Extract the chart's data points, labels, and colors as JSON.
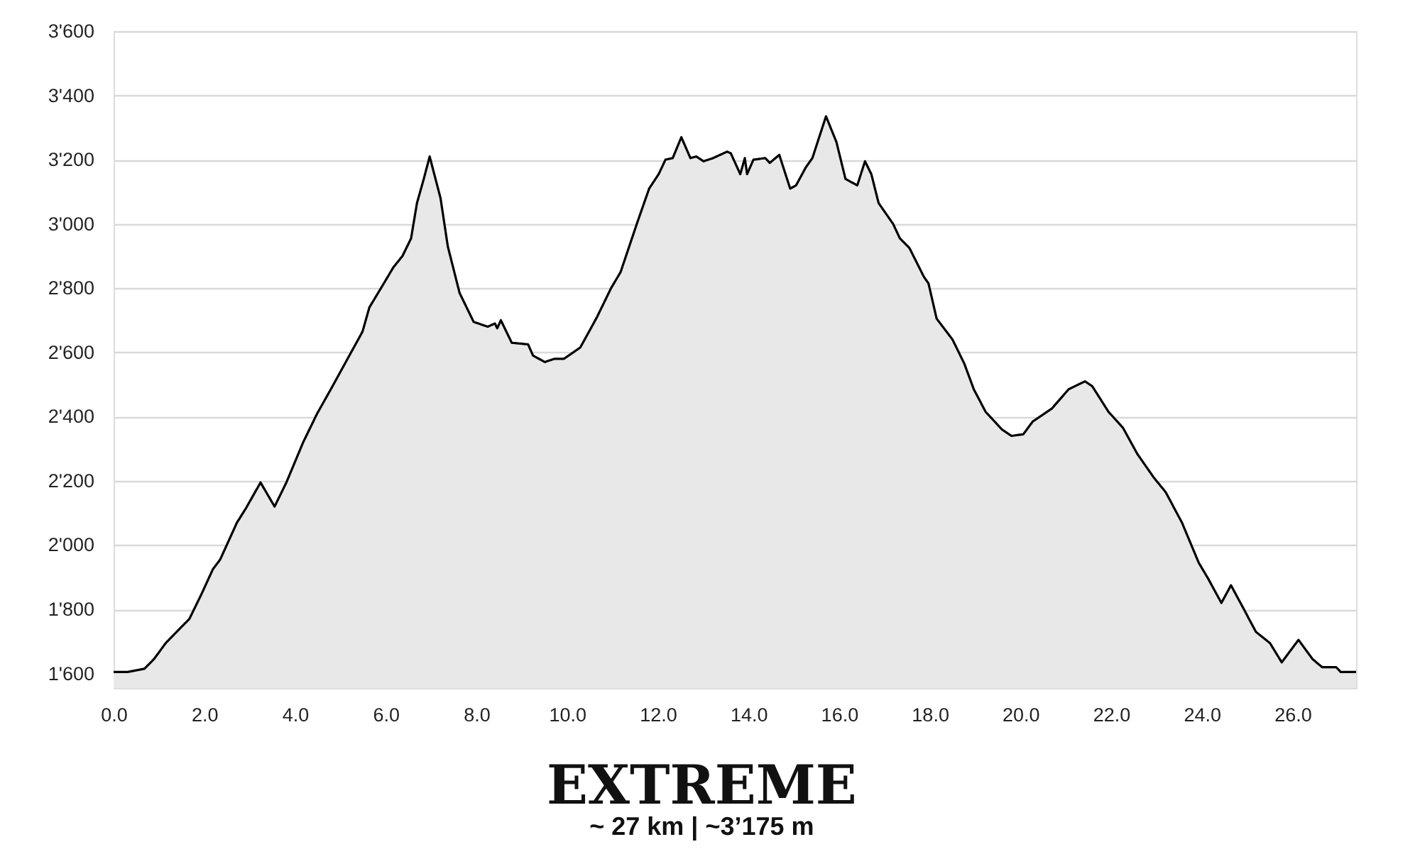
{
  "chart_data": {
    "type": "area",
    "title": "EXTREME",
    "subtitle": "~ 27 km | ~3’175 m",
    "x": [
      0,
      0.31,
      0.68,
      0.89,
      1.15,
      1.46,
      1.67,
      1.93,
      2.19,
      2.35,
      2.72,
      2.92,
      3.24,
      3.55,
      3.81,
      4.18,
      4.49,
      4.81,
      5.12,
      5.49,
      5.64,
      5.96,
      6.17,
      6.37,
      6.56,
      6.69,
      6.84,
      6.97,
      7.21,
      7.37,
      7.63,
      7.94,
      8.25,
      8.41,
      8.46,
      8.54,
      8.78,
      9.14,
      9.25,
      9.51,
      9.72,
      9.93,
      10.29,
      10.66,
      10.97,
      11.18,
      11.55,
      11.81,
      12.02,
      12.17,
      12.33,
      12.52,
      12.72,
      12.85,
      13.01,
      13.22,
      13.53,
      13.61,
      13.82,
      13.92,
      13.97,
      14.11,
      14.37,
      14.47,
      14.68,
      14.92,
      15.05,
      15.26,
      15.41,
      15.71,
      15.94,
      16.14,
      16.4,
      16.57,
      16.71,
      16.87,
      17.19,
      17.34,
      17.55,
      17.87,
      17.97,
      18.15,
      18.5,
      18.76,
      18.97,
      19.23,
      19.59,
      19.8,
      20.06,
      20.27,
      20.69,
      21.06,
      21.42,
      21.58,
      21.94,
      22.26,
      22.57,
      22.94,
      23.2,
      23.56,
      23.93,
      24.14,
      24.43,
      24.64,
      24.87,
      25.19,
      25.5,
      25.76,
      26.13,
      26.44,
      26.65,
      26.96,
      27.06,
      27.4
    ],
    "series": [
      {
        "color": "#e8e8e8",
        "values": [
          1605,
          1605,
          1615,
          1645,
          1695,
          1740,
          1770,
          1845,
          1925,
          1955,
          2070,
          2115,
          2195,
          2120,
          2195,
          2320,
          2410,
          2490,
          2570,
          2665,
          2740,
          2815,
          2865,
          2900,
          2955,
          3065,
          3140,
          3210,
          3080,
          2930,
          2785,
          2695,
          2680,
          2690,
          2675,
          2700,
          2630,
          2625,
          2590,
          2570,
          2580,
          2580,
          2615,
          2710,
          2800,
          2850,
          3005,
          3110,
          3155,
          3200,
          3205,
          3270,
          3205,
          3210,
          3195,
          3205,
          3225,
          3220,
          3155,
          3205,
          3155,
          3200,
          3205,
          3190,
          3215,
          3110,
          3120,
          3175,
          3205,
          3335,
          3255,
          3140,
          3120,
          3195,
          3155,
          3065,
          3000,
          2955,
          2925,
          2835,
          2815,
          2705,
          2640,
          2565,
          2485,
          2415,
          2360,
          2340,
          2345,
          2385,
          2425,
          2485,
          2510,
          2495,
          2415,
          2365,
          2285,
          2210,
          2165,
          2070,
          1945,
          1895,
          1820,
          1875,
          1815,
          1730,
          1695,
          1635,
          1705,
          1645,
          1620,
          1620,
          1605,
          1605
        ]
      }
    ],
    "xlim": [
      0,
      27.4
    ],
    "xticks": [
      {
        "value": 0,
        "label": "0.0"
      },
      {
        "value": 2,
        "label": "2.0"
      },
      {
        "value": 4,
        "label": "4.0"
      },
      {
        "value": 6,
        "label": "6.0"
      },
      {
        "value": 8,
        "label": "8.0"
      },
      {
        "value": 10,
        "label": "10.0"
      },
      {
        "value": 12,
        "label": "12.0"
      },
      {
        "value": 14,
        "label": "14.0"
      },
      {
        "value": 16,
        "label": "16.0"
      },
      {
        "value": 18,
        "label": "18.0"
      },
      {
        "value": 20,
        "label": "20.0"
      },
      {
        "value": 22,
        "label": "22.0"
      },
      {
        "value": 24,
        "label": "24.0"
      },
      {
        "value": 26,
        "label": "26.0"
      }
    ],
    "ylim": [
      1555,
      3600
    ],
    "yticks": [
      {
        "value": 1600,
        "label": "1'600"
      },
      {
        "value": 1800,
        "label": "1'800"
      },
      {
        "value": 2000,
        "label": "2'000"
      },
      {
        "value": 2200,
        "label": "2'200"
      },
      {
        "value": 2400,
        "label": "2'400"
      },
      {
        "value": 2600,
        "label": "2'600"
      },
      {
        "value": 2800,
        "label": "2'800"
      },
      {
        "value": 3000,
        "label": "3'000"
      },
      {
        "value": 3200,
        "label": "3'200"
      },
      {
        "value": 3400,
        "label": "3'400"
      },
      {
        "value": 3600,
        "label": "3'600"
      }
    ],
    "grid": "y",
    "line_style": "solid"
  }
}
